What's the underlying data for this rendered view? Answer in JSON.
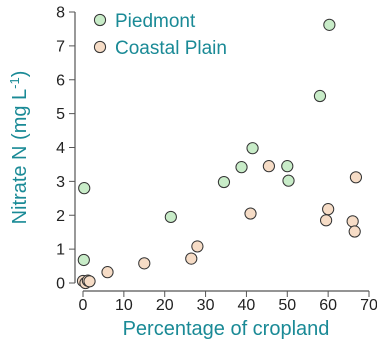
{
  "chart_data": {
    "type": "scatter",
    "xlabel": "Percentage of cropland",
    "ylabel_main": "Nitrate N (mg L",
    "ylabel_sup": "-1",
    "ylabel_close": ")",
    "xlim": [
      0,
      70
    ],
    "ylim": [
      0,
      8
    ],
    "x_ticks": [
      0,
      10,
      20,
      30,
      40,
      50,
      60,
      70
    ],
    "y_ticks": [
      0,
      1,
      2,
      3,
      4,
      5,
      6,
      7,
      8
    ],
    "grid": false,
    "legend_position": "top-left",
    "colors": {
      "label": "#1a8a96",
      "axis": "#555555",
      "tick_text": "#222222"
    },
    "series": [
      {
        "name": "Piedmont",
        "fill": "#c8ecc8",
        "points": [
          {
            "x": 0.3,
            "y": 2.8
          },
          {
            "x": 0.2,
            "y": 0.68
          },
          {
            "x": 21.5,
            "y": 1.95
          },
          {
            "x": 34.5,
            "y": 2.98
          },
          {
            "x": 38.8,
            "y": 3.42
          },
          {
            "x": 41.5,
            "y": 3.98
          },
          {
            "x": 50.0,
            "y": 3.45
          },
          {
            "x": 50.3,
            "y": 3.02
          },
          {
            "x": 58.0,
            "y": 5.52
          },
          {
            "x": 60.3,
            "y": 7.62
          }
        ]
      },
      {
        "name": "Coastal Plain",
        "fill": "#f6dcc6",
        "points": [
          {
            "x": 0.0,
            "y": 0.06
          },
          {
            "x": 0.6,
            "y": 0.0
          },
          {
            "x": 1.2,
            "y": 0.07
          },
          {
            "x": 1.6,
            "y": 0.05
          },
          {
            "x": 6.0,
            "y": 0.32
          },
          {
            "x": 15.0,
            "y": 0.58
          },
          {
            "x": 26.5,
            "y": 0.72
          },
          {
            "x": 28.0,
            "y": 1.08
          },
          {
            "x": 41.0,
            "y": 2.05
          },
          {
            "x": 45.5,
            "y": 3.45
          },
          {
            "x": 59.5,
            "y": 1.85
          },
          {
            "x": 60.0,
            "y": 2.18
          },
          {
            "x": 66.0,
            "y": 1.82
          },
          {
            "x": 66.5,
            "y": 1.52
          },
          {
            "x": 66.8,
            "y": 3.12
          }
        ]
      }
    ]
  }
}
